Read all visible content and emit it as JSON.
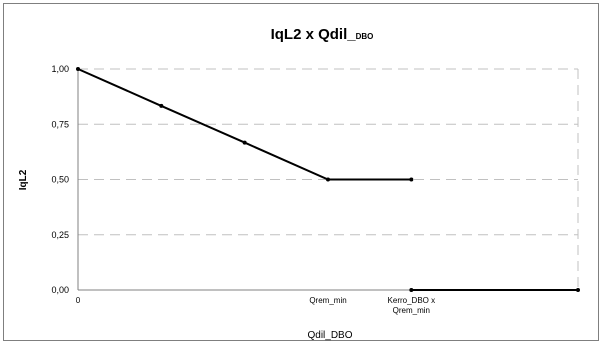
{
  "chart_data": {
    "type": "line",
    "title_main": "IqL2 x Qdil_",
    "title_sub": "DBO",
    "ylabel": "IqL2",
    "xlabel": "Qdil_DBO",
    "ylim": [
      0,
      1
    ],
    "yticks": [
      {
        "value": 0.0,
        "label": "0,00"
      },
      {
        "value": 0.25,
        "label": "0,25"
      },
      {
        "value": 0.5,
        "label": "0,50"
      },
      {
        "value": 0.75,
        "label": "0,75"
      },
      {
        "value": 1.0,
        "label": "1,00"
      }
    ],
    "xticks": [
      {
        "x": 0,
        "lines": [
          "0"
        ]
      },
      {
        "x": 3,
        "lines": [
          "Qrem_min"
        ]
      },
      {
        "x": 4,
        "lines": [
          "Kerro_DBO x",
          "Qrem_min"
        ]
      }
    ],
    "xlim": [
      0,
      6
    ],
    "grid": true,
    "series": [
      {
        "x": [
          0,
          1,
          2,
          3,
          4
        ],
        "y": [
          1.0,
          0.833,
          0.667,
          0.5,
          0.5
        ]
      },
      {
        "x": [
          4,
          6
        ],
        "y": [
          0.0,
          0.0
        ]
      }
    ]
  }
}
